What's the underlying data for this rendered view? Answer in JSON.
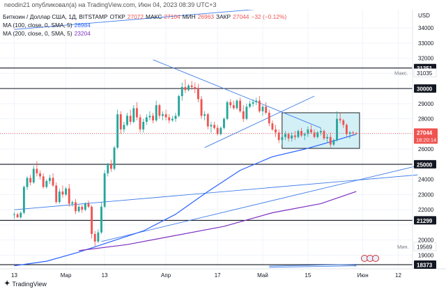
{
  "header": {
    "text": "neodin21 опубликовал(а) на TradingView.com, Июн 04, 2023 08:39 UTC+3"
  },
  "legend": {
    "title": "Биткоин / Доллар США, 1Д, BITSTAMP",
    "ohlc": [
      {
        "label": "ОТКР",
        "value": "27072"
      },
      {
        "label": "МАКС",
        "value": "27104"
      },
      {
        "label": "МИН",
        "value": "26963"
      },
      {
        "label": "ЗАКР",
        "value": "27044"
      }
    ],
    "change": "−32 (−0.12%)",
    "indicators": [
      {
        "label": "MA (100, close, 0, SMA, 5)",
        "value": "26984",
        "color": "#2962ff"
      },
      {
        "label": "MA (200, close, 0, SMA, 5)",
        "value": "23204",
        "color": "#7b2fbf"
      }
    ]
  },
  "footer": {
    "brand": "TradingView"
  },
  "colors": {
    "up": "#26a69a",
    "down": "#ef5350",
    "ma100": "#2962ff",
    "ma200": "#7b2fbf",
    "trendline": "#3f7de8",
    "box_fill": "#d4f0f7",
    "box_stroke": "#222222"
  },
  "chart_data": {
    "type": "candlestick",
    "symbol": "BTCUSD",
    "currency": "USD",
    "ylim": [
      18100,
      35200
    ],
    "y_ticks": [
      19000,
      20000,
      21000,
      22000,
      23000,
      24000,
      25000,
      26000,
      27000,
      28000,
      29000,
      30000,
      31000,
      32000,
      33000,
      34000
    ],
    "x_ticks": [
      {
        "label": "13",
        "day": 0
      },
      {
        "label": "Мар",
        "day": 16
      },
      {
        "label": "13",
        "day": 28
      },
      {
        "label": "Апр",
        "day": 47
      },
      {
        "label": "17",
        "day": 63
      },
      {
        "label": "Май",
        "day": 77
      },
      {
        "label": "15",
        "day": 91
      },
      {
        "label": "Июн",
        "day": 108
      },
      {
        "label": "12",
        "day": 119
      }
    ],
    "horizontal_levels": [
      {
        "value": 31351,
        "label": "31351"
      },
      {
        "value": 30000,
        "label": "30000"
      },
      {
        "value": 25000,
        "label": "25000"
      },
      {
        "value": 21299,
        "label": "21299"
      },
      {
        "value": 18373,
        "label": "18373"
      }
    ],
    "price_markers": {
      "max_label": "Макс.",
      "max_value": "31035",
      "min_label": "Мин.",
      "min_value": "19569",
      "last_price": "27044",
      "countdown": "18:20:14",
      "last_price_value": 27044
    },
    "box": {
      "day_start": 83,
      "day_end": 107,
      "top": 28400,
      "bottom": 26050
    },
    "candles": [
      [
        0,
        21650,
        21850,
        21400,
        21700
      ],
      [
        1,
        21700,
        21800,
        21450,
        21500
      ],
      [
        2,
        21500,
        21900,
        21400,
        21800
      ],
      [
        3,
        21800,
        23600,
        21700,
        23500
      ],
      [
        4,
        23500,
        24200,
        23300,
        24100
      ],
      [
        5,
        24100,
        24300,
        23600,
        23800
      ],
      [
        6,
        23800,
        24900,
        23700,
        24700
      ],
      [
        7,
        24700,
        25200,
        24200,
        24400
      ],
      [
        8,
        24400,
        24600,
        24000,
        24200
      ],
      [
        9,
        24200,
        24400,
        23400,
        23500
      ],
      [
        10,
        23500,
        24000,
        23400,
        23900
      ],
      [
        11,
        23900,
        24300,
        23700,
        24100
      ],
      [
        12,
        24100,
        24400,
        23500,
        23600
      ],
      [
        13,
        23600,
        23800,
        22400,
        22500
      ],
      [
        14,
        22500,
        23400,
        22400,
        23200
      ],
      [
        15,
        23200,
        23600,
        22800,
        23000
      ],
      [
        16,
        23000,
        23500,
        22900,
        23400
      ],
      [
        17,
        23400,
        23700,
        22200,
        22400
      ],
      [
        18,
        22400,
        22600,
        22200,
        22500
      ],
      [
        19,
        22500,
        22700,
        21700,
        21900
      ],
      [
        20,
        21900,
        22300,
        21800,
        22200
      ],
      [
        21,
        22200,
        22300,
        21800,
        22000
      ],
      [
        22,
        22000,
        22500,
        21900,
        22400
      ],
      [
        23,
        22400,
        22600,
        22100,
        22200
      ],
      [
        24,
        22200,
        22300,
        20100,
        20400
      ],
      [
        25,
        20400,
        20600,
        19600,
        19900
      ],
      [
        26,
        19900,
        20700,
        19800,
        20500
      ],
      [
        27,
        20500,
        22500,
        20400,
        22200
      ],
      [
        28,
        22200,
        24600,
        22100,
        24400
      ],
      [
        29,
        24400,
        25100,
        24200,
        25000
      ],
      [
        30,
        25000,
        25300,
        24500,
        24700
      ],
      [
        31,
        24700,
        26200,
        24600,
        26100
      ],
      [
        32,
        26100,
        28600,
        26000,
        28300
      ],
      [
        33,
        28300,
        28500,
        27000,
        27300
      ],
      [
        34,
        27300,
        27800,
        27100,
        27600
      ],
      [
        35,
        27600,
        28400,
        27500,
        28200
      ],
      [
        36,
        28200,
        28600,
        27600,
        27800
      ],
      [
        37,
        27800,
        28900,
        27700,
        28700
      ],
      [
        38,
        28700,
        29100,
        27900,
        28100
      ],
      [
        39,
        28100,
        28300,
        27100,
        27300
      ],
      [
        40,
        27300,
        28000,
        27100,
        27800
      ],
      [
        41,
        27800,
        28300,
        27600,
        28100
      ],
      [
        42,
        28100,
        28500,
        27900,
        28200
      ],
      [
        43,
        28200,
        28400,
        27700,
        27900
      ],
      [
        44,
        27900,
        29200,
        27800,
        28900
      ],
      [
        45,
        28900,
        29000,
        28000,
        28200
      ],
      [
        46,
        28200,
        28500,
        27900,
        28300
      ],
      [
        47,
        28300,
        28600,
        27900,
        28100
      ],
      [
        48,
        28100,
        28300,
        27700,
        27900
      ],
      [
        49,
        27900,
        28200,
        27800,
        28000
      ],
      [
        50,
        28000,
        28400,
        27800,
        28200
      ],
      [
        51,
        28200,
        29600,
        28100,
        29500
      ],
      [
        52,
        29500,
        30400,
        29200,
        30100
      ],
      [
        53,
        30100,
        30600,
        29700,
        29900
      ],
      [
        54,
        29900,
        30300,
        29800,
        30200
      ],
      [
        55,
        30200,
        30500,
        29900,
        30100
      ],
      [
        56,
        30100,
        30400,
        29700,
        30000
      ],
      [
        57,
        30000,
        30300,
        29100,
        29300
      ],
      [
        58,
        29300,
        29500,
        28000,
        28200
      ],
      [
        59,
        28200,
        28500,
        27900,
        28300
      ],
      [
        60,
        28300,
        28400,
        27300,
        27500
      ],
      [
        61,
        27500,
        27800,
        27100,
        27600
      ],
      [
        62,
        27600,
        27800,
        27300,
        27400
      ],
      [
        63,
        27400,
        27600,
        26900,
        27000
      ],
      [
        64,
        27000,
        27500,
        26900,
        27400
      ],
      [
        65,
        27400,
        28100,
        27300,
        28000
      ],
      [
        66,
        28000,
        29200,
        27900,
        29100
      ],
      [
        67,
        29100,
        29300,
        28700,
        28900
      ],
      [
        68,
        28900,
        29200,
        28600,
        28700
      ],
      [
        69,
        28700,
        29300,
        28600,
        29200
      ],
      [
        70,
        29200,
        29400,
        28400,
        28500
      ],
      [
        71,
        28500,
        28900,
        27800,
        28000
      ],
      [
        72,
        28000,
        29000,
        27900,
        28800
      ],
      [
        73,
        28800,
        29200,
        28700,
        29000
      ],
      [
        74,
        29000,
        29300,
        28800,
        29100
      ],
      [
        75,
        29100,
        29400,
        28900,
        29200
      ],
      [
        76,
        29200,
        29500,
        28400,
        28500
      ],
      [
        77,
        28500,
        28900,
        28200,
        28800
      ],
      [
        78,
        28800,
        29100,
        28300,
        28400
      ],
      [
        79,
        28400,
        28600,
        27500,
        27700
      ],
      [
        80,
        27700,
        27900,
        27200,
        27300
      ],
      [
        81,
        27300,
        27600,
        26800,
        27100
      ],
      [
        82,
        27100,
        27300,
        26400,
        26600
      ],
      [
        83,
        26600,
        27000,
        26300,
        26800
      ],
      [
        84,
        26800,
        27200,
        26600,
        27000
      ],
      [
        85,
        27000,
        27100,
        26500,
        26700
      ],
      [
        86,
        26700,
        27100,
        26500,
        26900
      ],
      [
        87,
        26900,
        27200,
        26600,
        26800
      ],
      [
        88,
        26800,
        27300,
        26700,
        27200
      ],
      [
        89,
        27200,
        27400,
        26800,
        26900
      ],
      [
        90,
        26900,
        27100,
        26600,
        27000
      ],
      [
        91,
        27000,
        27500,
        26800,
        27300
      ],
      [
        92,
        27300,
        27600,
        27000,
        27100
      ],
      [
        93,
        27100,
        27300,
        26700,
        26800
      ],
      [
        94,
        26800,
        27200,
        26700,
        27100
      ],
      [
        95,
        27100,
        27400,
        26900,
        27200
      ],
      [
        96,
        27200,
        27300,
        26600,
        26700
      ],
      [
        97,
        26700,
        27000,
        26400,
        26800
      ],
      [
        98,
        26800,
        27100,
        26100,
        26300
      ],
      [
        99,
        26300,
        26700,
        26200,
        26600
      ],
      [
        100,
        26600,
        28500,
        26500,
        28000
      ],
      [
        101,
        28000,
        28400,
        27700,
        27900
      ],
      [
        102,
        27900,
        28000,
        27400,
        27600
      ],
      [
        103,
        27600,
        27700,
        26800,
        27000
      ],
      [
        104,
        27000,
        27200,
        26700,
        27100
      ],
      [
        105,
        27100,
        27200,
        26900,
        27072
      ],
      [
        106,
        27072,
        27104,
        26963,
        27044
      ]
    ],
    "ma100": [
      [
        0,
        18300
      ],
      [
        10,
        18600
      ],
      [
        20,
        19200
      ],
      [
        30,
        19900
      ],
      [
        40,
        20600
      ],
      [
        50,
        21700
      ],
      [
        60,
        23200
      ],
      [
        70,
        24600
      ],
      [
        80,
        25500
      ],
      [
        90,
        26000
      ],
      [
        100,
        26600
      ],
      [
        106,
        26984
      ]
    ],
    "ma200": [
      [
        20,
        19300
      ],
      [
        35,
        19700
      ],
      [
        50,
        20300
      ],
      [
        65,
        20900
      ],
      [
        80,
        21800
      ],
      [
        95,
        22400
      ],
      [
        106,
        23204
      ]
    ],
    "trendlines": [
      {
        "d1": 0,
        "p1": 22000,
        "d2": 125,
        "p2": 24300
      },
      {
        "d1": 27,
        "p1": 19900,
        "d2": 125,
        "p2": 24900
      },
      {
        "d1": 43,
        "p1": 31900,
        "d2": 95,
        "p2": 27400
      },
      {
        "d1": 59,
        "p1": 26100,
        "d2": 93,
        "p2": 29500
      },
      {
        "d1": 0,
        "p1": 33900,
        "d2": 79,
        "p2": 35300
      },
      {
        "d1": 79,
        "p1": 18200,
        "d2": 106,
        "p2": 18300
      },
      {
        "d1": 79,
        "p1": 18280,
        "d2": 106,
        "p2": 18400
      }
    ]
  }
}
